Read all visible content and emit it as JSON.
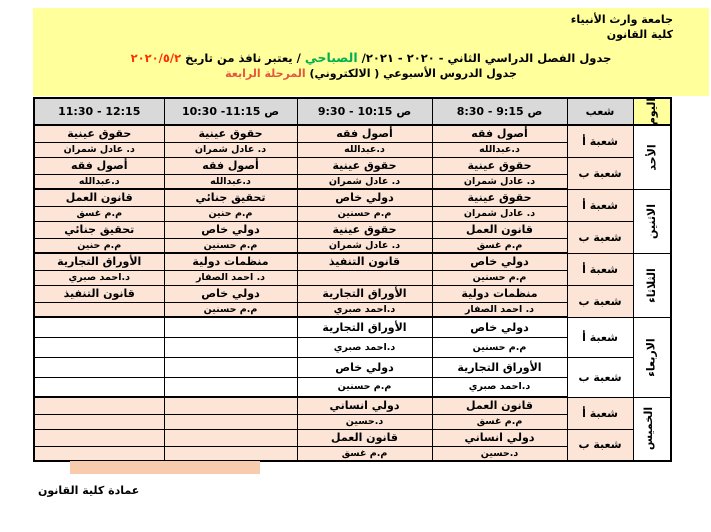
{
  "colors": {
    "banner_yellow": "#FFFF9C",
    "header_gray": "#D9D9D9",
    "cell_peach": "#FCE4D6",
    "footer_bar": "#F8CBAD",
    "teacher_blue": "#35A0D8",
    "teacher_red": "#C00000",
    "title_green": "#00B050",
    "date_red": "#FF3000",
    "stage_red": "#E65540"
  },
  "banner": {
    "university": "جامعة وارث الأنبياء",
    "college": "كلية القانون",
    "title": {
      "part1": "جدول الفصل الدراسي الثاني - ٢٠٢٠ - ٢٠٢١/",
      "morning": "الصباحي",
      "part2": "/ يعتبر نافذ من تاريخ",
      "date": "٢٠٢٠/٥/٢"
    },
    "subtitle": {
      "part1": "جدول الدروس الأسبوعي ( الالكتروني)",
      "stage": "المرحلة الرابعة"
    }
  },
  "table": {
    "corner_header": "اليوم",
    "section_header": "شعب",
    "time_headers": [
      {
        "time": "8:30 - 9:15",
        "suffix": "ص"
      },
      {
        "time": "9:30 - 10:15",
        "suffix": "ص"
      },
      {
        "time": "10:30 -11:15",
        "suffix": "ص"
      },
      {
        "time": "11:30 - 12:15",
        "suffix": ""
      }
    ],
    "days": [
      {
        "name": "الأحد",
        "white": false,
        "tall": false,
        "sections": [
          {
            "label": "شعبة أ",
            "slots": [
              {
                "course": "أصول فقه",
                "teacher": "د.عبدالله",
                "tcolor": "blue"
              },
              {
                "course": "أصول فقه",
                "teacher": "د.عبدالله",
                "tcolor": "blue"
              },
              {
                "course": "حقوق عينية",
                "teacher": "د. عادل شمران",
                "tcolor": "blue"
              },
              {
                "course": "حقوق عينية",
                "teacher": "د. عادل شمران",
                "tcolor": "blue"
              }
            ]
          },
          {
            "label": "شعبة ب",
            "slots": [
              {
                "course": "حقوق عينية",
                "teacher": "د. عادل شمران",
                "tcolor": "blue"
              },
              {
                "course": "حقوق عينية",
                "teacher": "د. عادل شمران",
                "tcolor": "blue"
              },
              {
                "course": "أصول فقه",
                "teacher": "د.عبدالله",
                "tcolor": "blue"
              },
              {
                "course": "أصول فقه",
                "teacher": "د.عبدالله",
                "tcolor": "blue"
              }
            ]
          }
        ]
      },
      {
        "name": "الاثنين",
        "white": false,
        "tall": false,
        "sections": [
          {
            "label": "شعبة أ",
            "slots": [
              {
                "course": "حقوق عينية",
                "teacher": "د. عادل شمران",
                "tcolor": "blue"
              },
              {
                "course": "دولي خاص",
                "teacher": "م.م حسنين",
                "tcolor": "blue"
              },
              {
                "course": "تحقيق جنائي",
                "teacher": "م.م حنين",
                "tcolor": "blue"
              },
              {
                "course": "قانون العمل",
                "teacher": "م.م غسق",
                "tcolor": "blue"
              }
            ]
          },
          {
            "label": "شعبة ب",
            "slots": [
              {
                "course": "قانون العمل",
                "teacher": "م.م غسق",
                "tcolor": "blue"
              },
              {
                "course": "حقوق عينية",
                "teacher": "د. عادل شمران",
                "tcolor": "blue"
              },
              {
                "course": "دولي خاص",
                "teacher": "م.م حسنين",
                "tcolor": "blue"
              },
              {
                "course": "تحقيق جنائي",
                "teacher": "م.م حنين",
                "tcolor": "black"
              }
            ]
          }
        ]
      },
      {
        "name": "الثلاثاء",
        "white": false,
        "tall": false,
        "sections": [
          {
            "label": "شعبة أ",
            "slots": [
              {
                "course": "دولي خاص",
                "teacher": "م.م حسنين",
                "tcolor": "blue"
              },
              {
                "course": "قانون التنفيذ",
                "teacher": "",
                "tcolor": "blue"
              },
              {
                "course": "منظمات دولية",
                "teacher": "د. احمد الصفار",
                "tcolor": "blue"
              },
              {
                "course": "الأوراق التجارية",
                "teacher": "د.احمد صبري",
                "tcolor": "red"
              }
            ]
          },
          {
            "label": "شعبة ب",
            "slots": [
              {
                "course": "منظمات دولية",
                "teacher": "د. احمد الصفار",
                "tcolor": "blue"
              },
              {
                "course": "الأوراق التجارية",
                "teacher": "د.احمد صبري",
                "tcolor": "red"
              },
              {
                "course": "دولي خاص",
                "teacher": "م.م حسنين",
                "tcolor": "red"
              },
              {
                "course": "قانون التنفيذ",
                "teacher": "",
                "tcolor": "blue"
              }
            ]
          }
        ]
      },
      {
        "name": "الاربعاء",
        "white": true,
        "tall": true,
        "sections": [
          {
            "label": "شعبة أ",
            "slots": [
              {
                "course": "دولي خاص",
                "teacher": "م.م حسنين",
                "tcolor": "blue"
              },
              {
                "course": "الأوراق التجارية",
                "teacher": "د.احمد صبري",
                "tcolor": "red"
              },
              {
                "course": "",
                "teacher": "",
                "tcolor": "blue"
              },
              {
                "course": "",
                "teacher": "",
                "tcolor": "blue"
              }
            ]
          },
          {
            "label": "شعبة ب",
            "slots": [
              {
                "course": "الأوراق التجارية",
                "teacher": "د.احمد صبري",
                "tcolor": "red"
              },
              {
                "course": "دولي خاص",
                "teacher": "م.م حسنين",
                "tcolor": "blue"
              },
              {
                "course": "",
                "teacher": "",
                "tcolor": "blue"
              },
              {
                "course": "",
                "teacher": "",
                "tcolor": "blue"
              }
            ]
          }
        ]
      },
      {
        "name": "الخميس",
        "white": false,
        "tall": false,
        "sections": [
          {
            "label": "شعبة أ",
            "slots": [
              {
                "course": "قانون العمل",
                "teacher": "م.م غسق",
                "tcolor": "blue"
              },
              {
                "course": "دولي انساني",
                "teacher": "د.حسين",
                "tcolor": "blue"
              },
              {
                "course": "",
                "teacher": "",
                "tcolor": "blue"
              },
              {
                "course": "",
                "teacher": "",
                "tcolor": "blue"
              }
            ]
          },
          {
            "label": "شعبة ب",
            "slots": [
              {
                "course": "دولي انساني",
                "teacher": "د.حسين",
                "tcolor": "blue"
              },
              {
                "course": "قانون العمل",
                "teacher": "م.م غسق",
                "tcolor": "blue"
              },
              {
                "course": "",
                "teacher": "",
                "tcolor": "blue"
              },
              {
                "course": "",
                "teacher": "",
                "tcolor": "blue"
              }
            ]
          }
        ]
      }
    ]
  },
  "footer": {
    "dean": "عمادة كلية القانون"
  }
}
